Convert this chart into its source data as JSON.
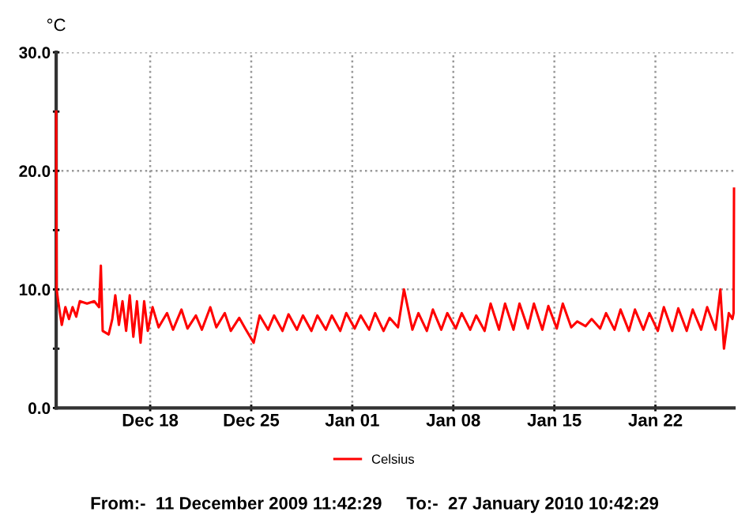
{
  "chart_data": {
    "type": "line",
    "ylabel": "°C",
    "xlim": [
      "2009-12-11T11:42",
      "2010-01-27T10:42"
    ],
    "xticks": [
      {
        "value": "2009-12-18",
        "label": "Dec 18"
      },
      {
        "value": "2009-12-25",
        "label": "Dec 25"
      },
      {
        "value": "2010-01-01",
        "label": "Jan 01"
      },
      {
        "value": "2010-01-08",
        "label": "Jan 08"
      },
      {
        "value": "2010-01-15",
        "label": "Jan 15"
      },
      {
        "value": "2010-01-22",
        "label": "Jan 22"
      }
    ],
    "ylim": [
      0,
      30
    ],
    "yticks": [
      {
        "value": 0,
        "label": "0.0"
      },
      {
        "value": 5,
        "label": null
      },
      {
        "value": 10,
        "label": "10.0"
      },
      {
        "value": 15,
        "label": null
      },
      {
        "value": 20,
        "label": "20.0"
      },
      {
        "value": 25,
        "label": null
      },
      {
        "value": 30,
        "label": "30.0"
      }
    ],
    "grid": true,
    "legend": "bottom",
    "line_style": "solid",
    "annotations": [
      "From:-  11 December 2009 11:42:29     To:-  27 January 2010 10:42:29"
    ],
    "series": [
      {
        "name": "Celsius",
        "color": "#ff0000",
        "x": [
          "2009-12-11T11:42",
          "2009-12-11T12:30",
          "2009-12-11T15:00",
          "2009-12-11T21:00",
          "2009-12-12T03:00",
          "2009-12-12T09:00",
          "2009-12-12T15:00",
          "2009-12-12T21:00",
          "2009-12-13T03:00",
          "2009-12-13T15:00",
          "2009-12-14T03:00",
          "2009-12-14T11:00",
          "2009-12-14T14:00",
          "2009-12-14T17:00",
          "2009-12-15T03:00",
          "2009-12-15T09:00",
          "2009-12-15T14:00",
          "2009-12-15T20:00",
          "2009-12-16T02:00",
          "2009-12-16T08:00",
          "2009-12-16T14:00",
          "2009-12-16T20:00",
          "2009-12-17T02:00",
          "2009-12-17T08:00",
          "2009-12-17T14:00",
          "2009-12-17T20:00",
          "2009-12-18T04:00",
          "2009-12-18T14:00",
          "2009-12-19T04:00",
          "2009-12-19T14:00",
          "2009-12-20T04:00",
          "2009-12-20T14:00",
          "2009-12-21T04:00",
          "2009-12-21T14:00",
          "2009-12-22T04:00",
          "2009-12-22T14:00",
          "2009-12-23T04:00",
          "2009-12-23T14:00",
          "2009-12-24T04:00",
          "2009-12-24T14:00",
          "2009-12-25T04:00",
          "2009-12-25T14:00",
          "2009-12-26T04:00",
          "2009-12-26T14:00",
          "2009-12-27T04:00",
          "2009-12-27T14:00",
          "2009-12-28T04:00",
          "2009-12-28T14:00",
          "2009-12-29T04:00",
          "2009-12-29T14:00",
          "2009-12-30T04:00",
          "2009-12-30T14:00",
          "2009-12-31T04:00",
          "2009-12-31T14:00",
          "2010-01-01T04:00",
          "2010-01-01T14:00",
          "2010-01-02T04:00",
          "2010-01-02T14:00",
          "2010-01-03T04:00",
          "2010-01-03T14:00",
          "2010-01-04T04:00",
          "2010-01-04T14:00",
          "2010-01-05T04:00",
          "2010-01-05T14:00",
          "2010-01-06T04:00",
          "2010-01-06T14:00",
          "2010-01-07T04:00",
          "2010-01-07T14:00",
          "2010-01-08T04:00",
          "2010-01-08T14:00",
          "2010-01-09T04:00",
          "2010-01-09T14:00",
          "2010-01-10T04:00",
          "2010-01-10T14:00",
          "2010-01-11T04:00",
          "2010-01-11T14:00",
          "2010-01-12T04:00",
          "2010-01-12T14:00",
          "2010-01-13T04:00",
          "2010-01-13T14:00",
          "2010-01-14T04:00",
          "2010-01-14T14:00",
          "2010-01-15T04:00",
          "2010-01-15T14:00",
          "2010-01-16T04:00",
          "2010-01-16T14:00",
          "2010-01-17T04:00",
          "2010-01-17T14:00",
          "2010-01-18T04:00",
          "2010-01-18T14:00",
          "2010-01-19T04:00",
          "2010-01-19T14:00",
          "2010-01-20T04:00",
          "2010-01-20T14:00",
          "2010-01-21T04:00",
          "2010-01-21T14:00",
          "2010-01-22T04:00",
          "2010-01-22T14:00",
          "2010-01-23T04:00",
          "2010-01-23T14:00",
          "2010-01-24T04:00",
          "2010-01-24T14:00",
          "2010-01-25T04:00",
          "2010-01-25T14:00",
          "2010-01-26T04:00",
          "2010-01-26T12:00",
          "2010-01-26T18:00",
          "2010-01-27T02:00",
          "2010-01-27T08:00",
          "2010-01-27T10:00",
          "2010-01-27T10:42"
        ],
        "values": [
          25.0,
          10.0,
          9.0,
          7.0,
          8.5,
          7.5,
          8.5,
          7.7,
          9.0,
          8.8,
          9.0,
          8.5,
          12.0,
          6.5,
          6.2,
          7.5,
          9.5,
          7.0,
          9.0,
          6.5,
          9.5,
          6.0,
          9.0,
          5.5,
          9.0,
          6.5,
          8.5,
          6.8,
          8.0,
          6.6,
          8.3,
          6.7,
          7.8,
          6.6,
          8.5,
          6.8,
          8.0,
          6.5,
          7.6,
          6.7,
          5.5,
          7.8,
          6.6,
          7.8,
          6.5,
          7.9,
          6.6,
          7.8,
          6.5,
          7.8,
          6.6,
          7.8,
          6.5,
          8.0,
          6.7,
          7.8,
          6.6,
          8.0,
          6.5,
          7.6,
          6.8,
          10.0,
          6.6,
          8.0,
          6.5,
          8.3,
          6.6,
          8.0,
          6.7,
          8.0,
          6.6,
          7.8,
          6.5,
          8.8,
          6.6,
          8.8,
          6.6,
          8.8,
          6.7,
          8.8,
          6.6,
          8.6,
          6.7,
          8.8,
          6.8,
          7.3,
          6.9,
          7.5,
          6.7,
          8.0,
          6.6,
          8.3,
          6.5,
          8.3,
          6.6,
          8.0,
          6.5,
          8.5,
          6.5,
          8.4,
          6.5,
          8.3,
          6.6,
          8.5,
          6.6,
          10.0,
          5.0,
          8.0,
          7.5,
          8.0,
          18.5
        ]
      }
    ]
  }
}
